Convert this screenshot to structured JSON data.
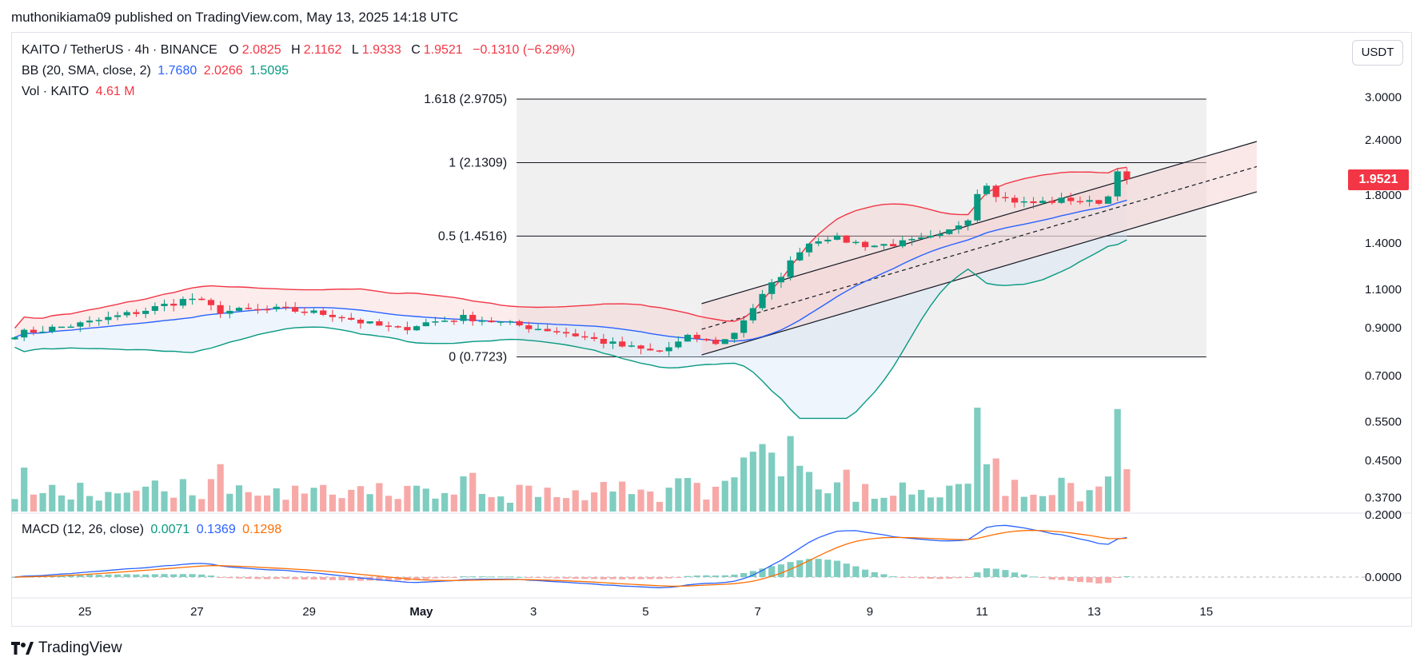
{
  "publisher": "muthonikiama09 published on TradingView.com, May 13, 2025 14:18 UTC",
  "brand": "TradingView",
  "currency_button": "USDT",
  "legend": {
    "symbol": "KAITO / TetherUS · 4h · BINANCE",
    "o_label": "O",
    "o_value": "2.0825",
    "h_label": "H",
    "h_value": "2.1162",
    "l_label": "L",
    "l_value": "1.9333",
    "c_label": "C",
    "c_value": "1.9521",
    "change": "−0.1310 (−6.29%)",
    "bb_name": "BB (20, SMA, close, 2)",
    "bb_basis": "1.7680",
    "bb_upper": "2.0266",
    "bb_lower": "1.5095",
    "vol_name": "Vol · KAITO",
    "vol_value": "4.61 M",
    "macd_name": "MACD (12, 26, close)",
    "macd_hist": "0.0071",
    "macd_line": "0.1369",
    "macd_signal": "0.1298"
  },
  "last_price": "1.9521",
  "colors": {
    "up": "#089981",
    "down": "#f23645",
    "up_vol": "#7ecdc0",
    "down_vol": "#f7a9a7",
    "bb_basis": "#2962ff",
    "bb_upper": "#f23645",
    "bb_lower": "#089981",
    "macd": "#2962ff",
    "signal": "#ff6d00",
    "fib_zone": "#f0f0f0",
    "channel_fill": "#f6d6d6"
  },
  "chart_data": {
    "type": "candlestick",
    "title": "KAITO / TetherUS · 4h · BINANCE",
    "x_ticks": [
      {
        "label": "25",
        "day": 25
      },
      {
        "label": "27",
        "day": 27
      },
      {
        "label": "29",
        "day": 29
      },
      {
        "label": "May",
        "day": 31
      },
      {
        "label": "3",
        "day": 33
      },
      {
        "label": "5",
        "day": 35
      },
      {
        "label": "7",
        "day": 37
      },
      {
        "label": "9",
        "day": 39
      },
      {
        "label": "11",
        "day": 41
      },
      {
        "label": "13",
        "day": 43
      },
      {
        "label": "15",
        "day": 45
      }
    ],
    "x_range": [
      23.7,
      47.3
    ],
    "price_ticks": [
      "3.0000",
      "2.4000",
      "1.8000",
      "1.4000",
      "1.1000",
      "0.9000",
      "0.7000",
      "0.5500",
      "0.4500",
      "0.3700"
    ],
    "price_tick_values": [
      3.0,
      2.4,
      1.8,
      1.4,
      1.1,
      0.9,
      0.7,
      0.55,
      0.45,
      0.37
    ],
    "price_scale": "log",
    "macd_ticks": [
      "0.2000",
      "0.0000"
    ],
    "macd_tick_values": [
      0.2,
      0.0
    ],
    "fib_levels": [
      {
        "label": "1.618 (2.9705)",
        "value": 2.9705
      },
      {
        "label": "1 (2.1309)",
        "value": 2.1309
      },
      {
        "label": "0.5 (1.4516)",
        "value": 1.4516
      },
      {
        "label": "0 (0.7723)",
        "value": 0.7723
      }
    ],
    "fib_x_range": [
      32.7,
      45.0
    ],
    "channel": {
      "x_start": 36.0,
      "x_end": 45.9,
      "lower_start": 0.78,
      "lower_end": 1.83,
      "upper_start": 1.02,
      "upper_end": 2.38
    },
    "key_points": {
      "first_close": 0.87,
      "late_april_high": 1.05,
      "may5_low": 0.79,
      "may6_breakout": 0.85,
      "may8_peak": 1.45,
      "may10_spike": 1.97,
      "may13_high": 2.1162,
      "last_open": 2.0825,
      "last_close": 1.9521,
      "bb_lower_trough": 0.56
    }
  }
}
